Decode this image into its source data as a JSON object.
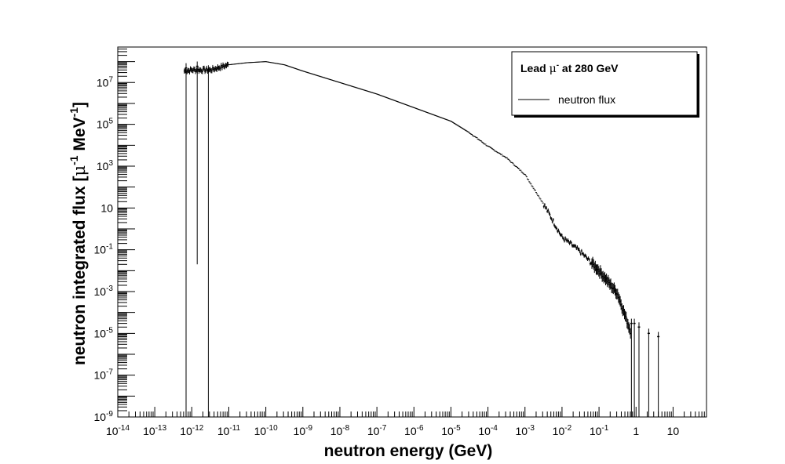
{
  "chart_data": {
    "type": "scatter",
    "x_scale": "log",
    "y_scale": "log",
    "xlabel": "neutron energy (GeV)",
    "ylabel_main": "neutron integrated flux [",
    "ylabel_mu": "μ",
    "ylabel_sup1": "-1",
    "ylabel_mev": " MeV",
    "ylabel_sup2": "-1",
    "ylabel_close": "]",
    "xlim": [
      1e-14,
      80
    ],
    "ylim": [
      1e-09,
      500000000.0
    ],
    "legend": {
      "placement": "top-right",
      "title_prefix": "Lead ",
      "title_mu": "μ",
      "title_sup": "-",
      "title_suffix": " at 280 GeV",
      "entry": "neutron flux"
    },
    "x_tick_labels": [
      {
        "b": "10",
        "e": "-14"
      },
      {
        "b": "10",
        "e": "-13"
      },
      {
        "b": "10",
        "e": "-12"
      },
      {
        "b": "10",
        "e": "-11"
      },
      {
        "b": "10",
        "e": "-10"
      },
      {
        "b": "10",
        "e": "-9"
      },
      {
        "b": "10",
        "e": "-8"
      },
      {
        "b": "10",
        "e": "-7"
      },
      {
        "b": "10",
        "e": "-6"
      },
      {
        "b": "10",
        "e": "-5"
      },
      {
        "b": "10",
        "e": "-4"
      },
      {
        "b": "10",
        "e": "-3"
      },
      {
        "b": "10",
        "e": "-2"
      },
      {
        "b": "10",
        "e": "-1"
      },
      {
        "b": "1",
        "e": ""
      },
      {
        "b": "10",
        "e": ""
      }
    ],
    "y_tick_labels": [
      {
        "b": "10",
        "e": "-9"
      },
      {
        "b": "10",
        "e": "-7"
      },
      {
        "b": "10",
        "e": "-5"
      },
      {
        "b": "10",
        "e": "-3"
      },
      {
        "b": "10",
        "e": "-1"
      },
      {
        "b": "10",
        "e": ""
      },
      {
        "b": "10",
        "e": "3"
      },
      {
        "b": "10",
        "e": "5"
      },
      {
        "b": "10",
        "e": "7"
      }
    ],
    "series": [
      {
        "name": "neutron flux",
        "anchors": [
          [
            -12.2,
            7.55
          ],
          [
            -12.0,
            7.6
          ],
          [
            -11.5,
            7.6
          ],
          [
            -11.0,
            7.85
          ],
          [
            -10.5,
            7.95
          ],
          [
            -10.0,
            8.0
          ],
          [
            -9.5,
            7.85
          ],
          [
            -9.0,
            7.55
          ],
          [
            -8.0,
            7.0
          ],
          [
            -7.0,
            6.45
          ],
          [
            -6.0,
            5.8
          ],
          [
            -5.0,
            5.15
          ],
          [
            -4.5,
            4.6
          ],
          [
            -4.0,
            3.95
          ],
          [
            -3.5,
            3.4
          ],
          [
            -3.0,
            2.6
          ],
          [
            -2.5,
            1.2
          ],
          [
            -2.0,
            -0.4
          ],
          [
            -1.5,
            -1.1
          ],
          [
            -1.0,
            -2.0
          ],
          [
            -0.5,
            -3.1
          ],
          [
            -0.15,
            -4.9
          ]
        ],
        "sparse_points": [
          {
            "x": 7e-13,
            "y": 50000000.0,
            "y_low": 1e-09
          },
          {
            "x": 1.4e-12,
            "y": 60000000.0,
            "y_low": 0.02
          },
          {
            "x": 2.8e-12,
            "y": 40000000.0,
            "y_low": 1e-09
          },
          {
            "x": 0.75,
            "y": 3e-05,
            "y_low": 1e-09
          },
          {
            "x": 0.9,
            "y": 3e-05,
            "y_low": 1e-09
          },
          {
            "x": 1.2,
            "y": 2e-05,
            "y_low": 1e-09
          },
          {
            "x": 2.2,
            "y": 1e-05,
            "y_low": 1e-09
          },
          {
            "x": 4.0,
            "y": 7e-06,
            "y_low": 1e-09
          }
        ]
      }
    ]
  }
}
